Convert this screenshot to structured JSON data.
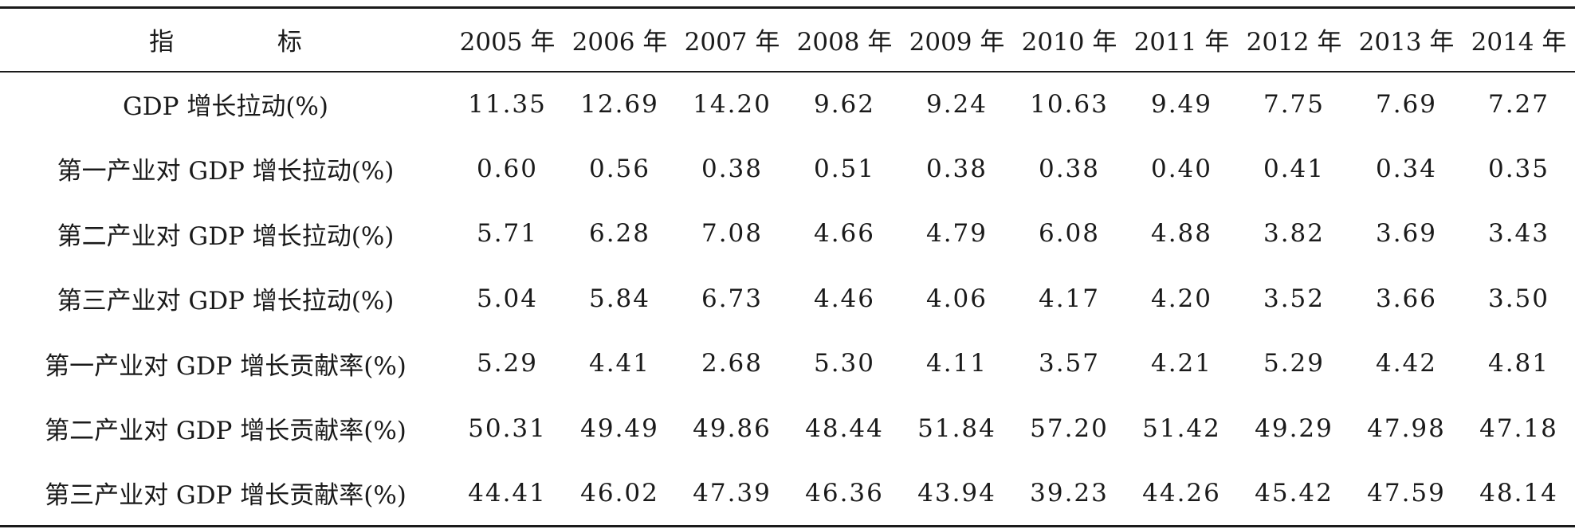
{
  "table": {
    "header": {
      "label": "指 标",
      "years": [
        "2005 年",
        "2006 年",
        "2007 年",
        "2008 年",
        "2009 年",
        "2010 年",
        "2011 年",
        "2012 年",
        "2013 年",
        "2014 年"
      ]
    },
    "rows": [
      {
        "label": "GDP 增长拉动(%)",
        "values": [
          "11.35",
          "12.69",
          "14.20",
          "9.62",
          "9.24",
          "10.63",
          "9.49",
          "7.75",
          "7.69",
          "7.27"
        ]
      },
      {
        "label": "第一产业对 GDP 增长拉动(%)",
        "values": [
          "0.60",
          "0.56",
          "0.38",
          "0.51",
          "0.38",
          "0.38",
          "0.40",
          "0.41",
          "0.34",
          "0.35"
        ]
      },
      {
        "label": "第二产业对 GDP 增长拉动(%)",
        "values": [
          "5.71",
          "6.28",
          "7.08",
          "4.66",
          "4.79",
          "6.08",
          "4.88",
          "3.82",
          "3.69",
          "3.43"
        ]
      },
      {
        "label": "第三产业对 GDP 增长拉动(%)",
        "values": [
          "5.04",
          "5.84",
          "6.73",
          "4.46",
          "4.06",
          "4.17",
          "4.20",
          "3.52",
          "3.66",
          "3.50"
        ]
      },
      {
        "label": "第一产业对 GDP 增长贡献率(%)",
        "values": [
          "5.29",
          "4.41",
          "2.68",
          "5.30",
          "4.11",
          "3.57",
          "4.21",
          "5.29",
          "4.42",
          "4.81"
        ]
      },
      {
        "label": "第二产业对 GDP 增长贡献率(%)",
        "values": [
          "50.31",
          "49.49",
          "49.86",
          "48.44",
          "51.84",
          "57.20",
          "51.42",
          "49.29",
          "47.98",
          "47.18"
        ]
      },
      {
        "label": "第三产业对 GDP 增长贡献率(%)",
        "values": [
          "44.41",
          "46.02",
          "47.39",
          "46.36",
          "43.94",
          "39.23",
          "44.26",
          "45.42",
          "47.59",
          "48.14"
        ]
      }
    ]
  }
}
